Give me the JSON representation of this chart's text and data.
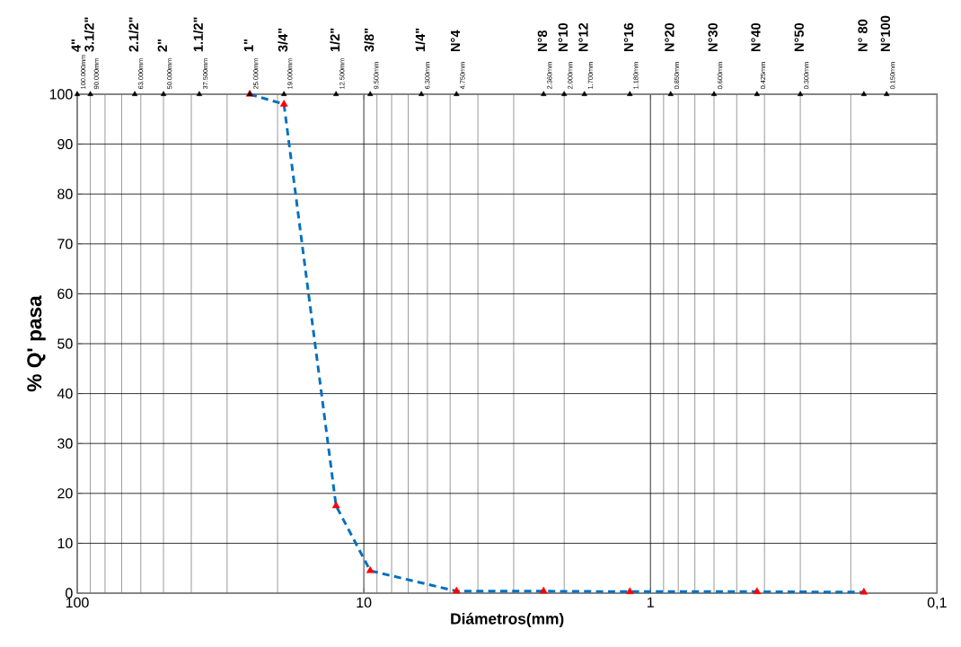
{
  "chart_data": {
    "type": "line",
    "xlabel": "Diámetros(mm)",
    "ylabel": "% Q' pasa",
    "log": "x",
    "grid": true,
    "xlim": [
      100,
      0.1
    ],
    "xticks": [
      100,
      10,
      1,
      {
        "value": 0.1,
        "label": "0,1"
      }
    ],
    "ylim": [
      0,
      100
    ],
    "yticks": [
      0,
      10,
      20,
      30,
      40,
      50,
      60,
      70,
      80,
      90,
      100
    ],
    "series": [
      {
        "type": "line",
        "color": "#0070c0",
        "marker": "triangle",
        "line_style": "dashed",
        "colors": [
          "#ff0000",
          "#ff0000",
          "#ff0000",
          "#ff0000",
          "#ff0000",
          "#ff0000",
          "#ff0000",
          "#ff0000",
          "#ff0000"
        ],
        "x": [
          25,
          19,
          12.5,
          9.5,
          4.75,
          2.36,
          1.18,
          0.425,
          0.18
        ],
        "values": [
          100,
          98,
          17.5,
          4.5,
          0.4,
          0.4,
          0.3,
          0.3,
          0.2
        ]
      },
      {
        "type": "scatter",
        "color": "#000000",
        "marker": "triangle",
        "x": [
          100,
          90,
          63,
          50,
          37.5,
          25,
          19,
          12.5,
          9.5,
          6.3,
          4.75,
          2.36,
          2,
          1.7,
          1.18,
          0.85,
          0.6,
          0.425,
          0.3,
          0.18,
          0.15
        ],
        "values": [
          100,
          100,
          100,
          100,
          100,
          100,
          100,
          100,
          100,
          100,
          100,
          100,
          100,
          100,
          100,
          100,
          100,
          100,
          100,
          100,
          100
        ]
      }
    ],
    "annotations": [
      "4\"",
      "3.1/2\"",
      "2.1/2\"",
      "2\"",
      "1.1/2\"",
      "1\"",
      "3/4\"",
      "1/2\"",
      "3/8\"",
      "1/4\"",
      "N°4",
      "N°8",
      "N°10",
      "N°12",
      "N°16",
      "N°20",
      "N°30",
      "N°40",
      "N°50",
      "N° 80",
      "N°100",
      {
        "text": "100.000mm",
        "x": 100,
        "y": 100
      },
      {
        "text": "90.000mm",
        "x": 90,
        "y": 100
      },
      {
        "text": "63.000mm",
        "x": 63,
        "y": 100
      },
      {
        "text": "50.000mm",
        "x": 50,
        "y": 100
      },
      {
        "text": "37.500mm",
        "x": 37.5,
        "y": 100
      },
      {
        "text": "25.000mm",
        "x": 25,
        "y": 100
      },
      {
        "text": "19.000mm",
        "x": 19,
        "y": 100
      },
      {
        "text": "12.500mm",
        "x": 12.5,
        "y": 100
      },
      {
        "text": "9.500mm",
        "x": 9.5,
        "y": 100
      },
      {
        "text": "6.300mm",
        "x": 6.3,
        "y": 100
      },
      {
        "text": "4.750mm",
        "x": 4.75,
        "y": 100
      },
      {
        "text": "2.360mm",
        "x": 2.36,
        "y": 100
      },
      {
        "text": "2.000mm",
        "x": 2,
        "y": 100
      },
      {
        "text": "1.700mm",
        "x": 1.7,
        "y": 100
      },
      {
        "text": "1.180mm",
        "x": 1.18,
        "y": 100
      },
      {
        "text": "0.850mm",
        "x": 0.85,
        "y": 100
      },
      {
        "text": "0.600mm",
        "x": 0.6,
        "y": 100
      },
      {
        "text": "0.425mm",
        "x": 0.425,
        "y": 100
      },
      {
        "text": "0.300mm",
        "x": 0.3,
        "y": 100
      },
      {
        "text": "0.150mm",
        "x": 0.15,
        "y": 100
      }
    ]
  }
}
